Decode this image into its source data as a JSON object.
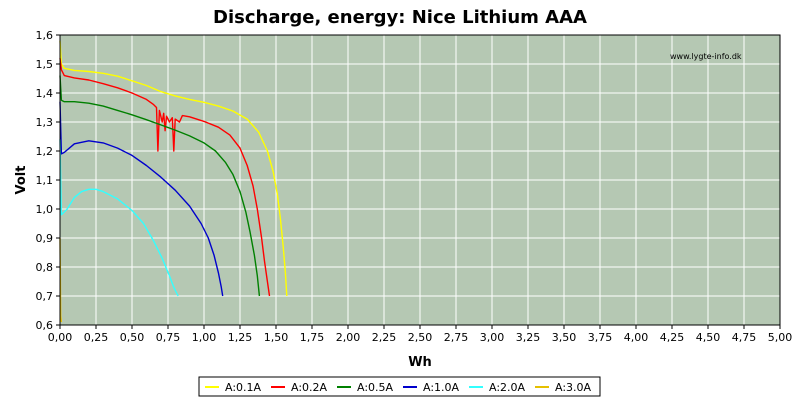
{
  "chart_data": {
    "type": "line",
    "title": "Discharge, energy: Nice Lithium AAA",
    "xlabel": "Wh",
    "ylabel": "Volt",
    "watermark": "www.lygte-info.dk",
    "xlim": [
      0,
      5.0
    ],
    "ylim": [
      0.6,
      1.6
    ],
    "xticks": [
      "0,00",
      "0,25",
      "0,50",
      "0,75",
      "1,00",
      "1,25",
      "1,50",
      "1,75",
      "2,00",
      "2,25",
      "2,50",
      "2,75",
      "3,00",
      "3,25",
      "3,50",
      "3,75",
      "4,00",
      "4,25",
      "4,50",
      "4,75",
      "5,00"
    ],
    "yticks": [
      "0,6",
      "0,7",
      "0,8",
      "0,9",
      "1,0",
      "1,1",
      "1,2",
      "1,3",
      "1,4",
      "1,5",
      "1,6"
    ],
    "grid": true,
    "legend_position": "bottom",
    "colors": {
      "plot_background": "#b5c8b3",
      "grid": "#ffffff",
      "axis": "#000000"
    },
    "series": [
      {
        "name": "A:0.1A",
        "color": "#ffff00",
        "points": [
          [
            0.0,
            1.58
          ],
          [
            0.01,
            1.5
          ],
          [
            0.03,
            1.485
          ],
          [
            0.1,
            1.478
          ],
          [
            0.2,
            1.474
          ],
          [
            0.3,
            1.468
          ],
          [
            0.4,
            1.458
          ],
          [
            0.5,
            1.442
          ],
          [
            0.6,
            1.426
          ],
          [
            0.7,
            1.405
          ],
          [
            0.8,
            1.39
          ],
          [
            0.9,
            1.378
          ],
          [
            1.0,
            1.368
          ],
          [
            1.1,
            1.355
          ],
          [
            1.2,
            1.338
          ],
          [
            1.3,
            1.31
          ],
          [
            1.38,
            1.265
          ],
          [
            1.44,
            1.2
          ],
          [
            1.48,
            1.13
          ],
          [
            1.51,
            1.05
          ],
          [
            1.53,
            0.97
          ],
          [
            1.55,
            0.87
          ],
          [
            1.565,
            0.78
          ],
          [
            1.575,
            0.7
          ]
        ]
      },
      {
        "name": "A:0.2A",
        "color": "#ff0000",
        "points": [
          [
            0.0,
            1.52
          ],
          [
            0.01,
            1.48
          ],
          [
            0.03,
            1.46
          ],
          [
            0.1,
            1.452
          ],
          [
            0.2,
            1.445
          ],
          [
            0.3,
            1.432
          ],
          [
            0.4,
            1.418
          ],
          [
            0.5,
            1.4
          ],
          [
            0.6,
            1.378
          ],
          [
            0.65,
            1.36
          ],
          [
            0.67,
            1.35
          ],
          [
            0.68,
            1.2
          ],
          [
            0.69,
            1.34
          ],
          [
            0.71,
            1.3
          ],
          [
            0.72,
            1.33
          ],
          [
            0.73,
            1.27
          ],
          [
            0.74,
            1.32
          ],
          [
            0.76,
            1.3
          ],
          [
            0.78,
            1.315
          ],
          [
            0.79,
            1.2
          ],
          [
            0.8,
            1.31
          ],
          [
            0.83,
            1.3
          ],
          [
            0.85,
            1.322
          ],
          [
            0.9,
            1.318
          ],
          [
            1.0,
            1.302
          ],
          [
            1.1,
            1.282
          ],
          [
            1.18,
            1.255
          ],
          [
            1.25,
            1.21
          ],
          [
            1.3,
            1.15
          ],
          [
            1.34,
            1.08
          ],
          [
            1.37,
            1.0
          ],
          [
            1.4,
            0.9
          ],
          [
            1.42,
            0.82
          ],
          [
            1.44,
            0.75
          ],
          [
            1.455,
            0.7
          ]
        ]
      },
      {
        "name": "A:0.5A",
        "color": "#008000",
        "points": [
          [
            0.0,
            1.46
          ],
          [
            0.01,
            1.375
          ],
          [
            0.03,
            1.37
          ],
          [
            0.1,
            1.37
          ],
          [
            0.2,
            1.365
          ],
          [
            0.3,
            1.355
          ],
          [
            0.4,
            1.34
          ],
          [
            0.5,
            1.325
          ],
          [
            0.6,
            1.308
          ],
          [
            0.7,
            1.29
          ],
          [
            0.8,
            1.272
          ],
          [
            0.9,
            1.252
          ],
          [
            1.0,
            1.228
          ],
          [
            1.08,
            1.2
          ],
          [
            1.15,
            1.16
          ],
          [
            1.2,
            1.12
          ],
          [
            1.25,
            1.06
          ],
          [
            1.29,
            0.99
          ],
          [
            1.32,
            0.92
          ],
          [
            1.35,
            0.84
          ],
          [
            1.37,
            0.77
          ],
          [
            1.385,
            0.7
          ]
        ]
      },
      {
        "name": "A:1.0A",
        "color": "#0000cc",
        "points": [
          [
            0.0,
            1.37
          ],
          [
            0.01,
            1.19
          ],
          [
            0.03,
            1.195
          ],
          [
            0.1,
            1.225
          ],
          [
            0.2,
            1.235
          ],
          [
            0.3,
            1.228
          ],
          [
            0.4,
            1.21
          ],
          [
            0.5,
            1.185
          ],
          [
            0.6,
            1.15
          ],
          [
            0.7,
            1.11
          ],
          [
            0.8,
            1.065
          ],
          [
            0.9,
            1.01
          ],
          [
            0.98,
            0.95
          ],
          [
            1.03,
            0.9
          ],
          [
            1.07,
            0.84
          ],
          [
            1.1,
            0.78
          ],
          [
            1.12,
            0.73
          ],
          [
            1.13,
            0.7
          ]
        ]
      },
      {
        "name": "A:2.0A",
        "color": "#33ffff",
        "points": [
          [
            0.0,
            1.24
          ],
          [
            0.01,
            0.98
          ],
          [
            0.05,
            1.0
          ],
          [
            0.1,
            1.04
          ],
          [
            0.15,
            1.06
          ],
          [
            0.2,
            1.068
          ],
          [
            0.25,
            1.068
          ],
          [
            0.3,
            1.06
          ],
          [
            0.4,
            1.035
          ],
          [
            0.5,
            0.995
          ],
          [
            0.58,
            0.95
          ],
          [
            0.65,
            0.89
          ],
          [
            0.71,
            0.83
          ],
          [
            0.76,
            0.77
          ],
          [
            0.79,
            0.73
          ],
          [
            0.82,
            0.7
          ]
        ]
      },
      {
        "name": "A:3.0A",
        "color": "#e6c000",
        "points": [
          [
            0.0,
            0.9
          ],
          [
            0.005,
            0.63
          ],
          [
            0.01,
            0.61
          ]
        ]
      }
    ]
  }
}
